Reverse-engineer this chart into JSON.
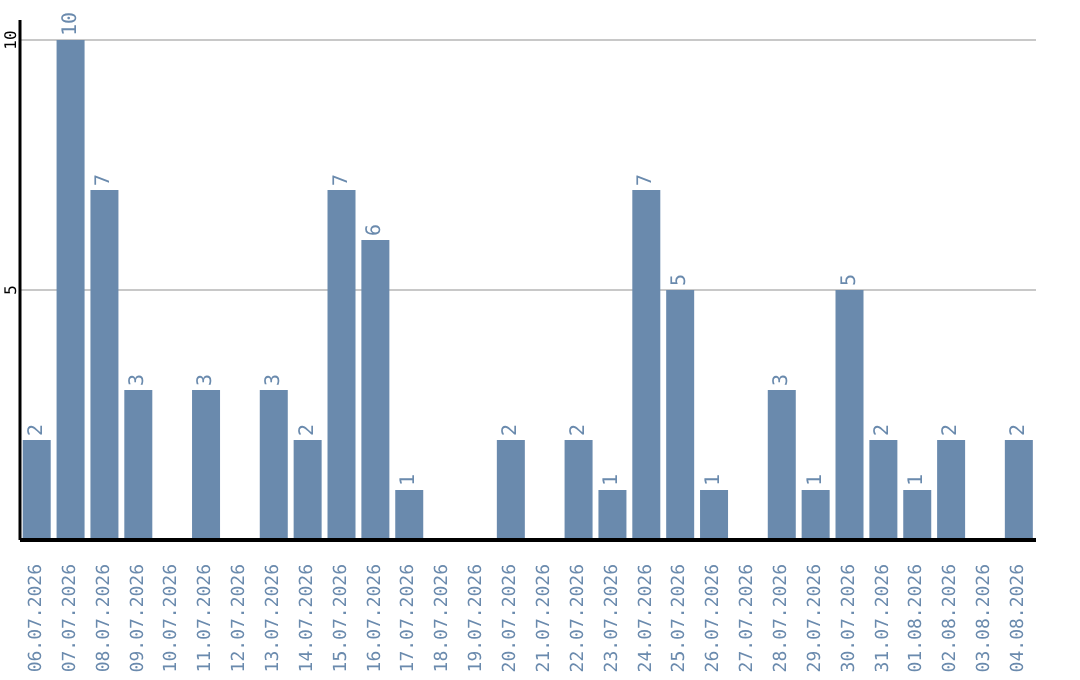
{
  "chart_data": {
    "type": "bar",
    "categories": [
      "06.07.2026",
      "07.07.2026",
      "08.07.2026",
      "09.07.2026",
      "10.07.2026",
      "11.07.2026",
      "12.07.2026",
      "13.07.2026",
      "14.07.2026",
      "15.07.2026",
      "16.07.2026",
      "17.07.2026",
      "18.07.2026",
      "19.07.2026",
      "20.07.2026",
      "21.07.2026",
      "22.07.2026",
      "23.07.2026",
      "24.07.2026",
      "25.07.2026",
      "26.07.2026",
      "27.07.2026",
      "28.07.2026",
      "29.07.2026",
      "30.07.2026",
      "31.07.2026",
      "01.08.2026",
      "02.08.2026",
      "03.08.2026",
      "04.08.2026"
    ],
    "values": [
      2,
      10,
      7,
      3,
      null,
      3,
      null,
      3,
      2,
      7,
      6,
      1,
      null,
      null,
      2,
      null,
      2,
      1,
      7,
      5,
      1,
      null,
      3,
      1,
      5,
      2,
      1,
      2,
      null,
      2
    ],
    "color": "#6a8aad",
    "ylim": [
      0,
      10.4
    ],
    "yticks": [
      5,
      10
    ],
    "grid": "y",
    "data_labels": true
  }
}
